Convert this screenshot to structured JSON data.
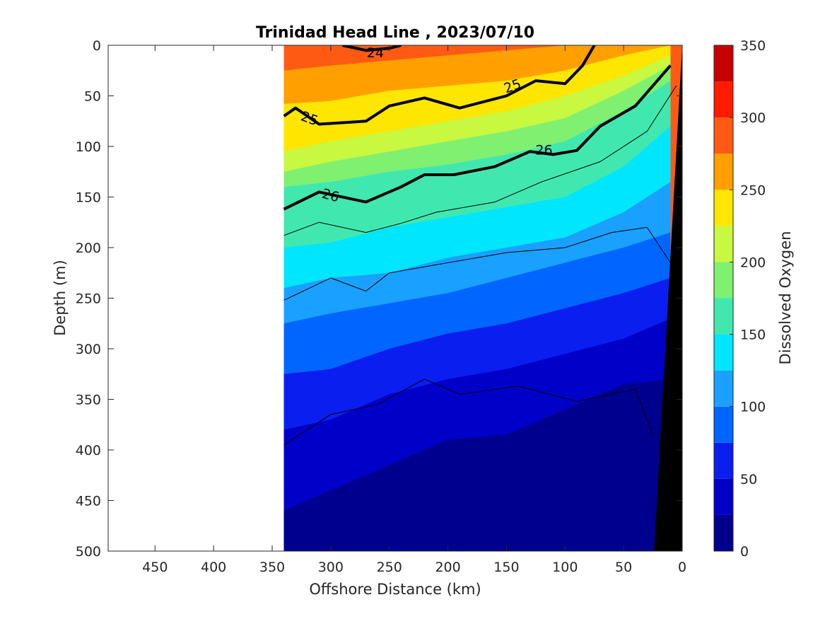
{
  "chart_data": {
    "type": "heatmap",
    "title": "Trinidad Head Line , 2023/07/10",
    "xlabel": "Offshore Distance (km)",
    "ylabel": "Depth (m)",
    "colorbar_label": "Dissolved Oxygen",
    "xlim": [
      490,
      0
    ],
    "ylim": [
      0,
      500
    ],
    "x_ticks": [
      450,
      400,
      350,
      300,
      250,
      200,
      150,
      100,
      50,
      0
    ],
    "y_ticks": [
      0,
      50,
      100,
      150,
      200,
      250,
      300,
      350,
      400,
      450,
      500
    ],
    "colorbar_ticks": [
      0,
      50,
      100,
      150,
      200,
      250,
      300,
      350
    ],
    "color_levels": [
      0,
      25,
      50,
      75,
      100,
      125,
      150,
      175,
      200,
      225,
      250,
      275,
      300,
      325,
      350
    ],
    "colormap": [
      "#00008f",
      "#0000c8",
      "#0a1ef0",
      "#0066ff",
      "#1aa0ff",
      "#00e6ff",
      "#40e8b0",
      "#80f070",
      "#c8f840",
      "#ffe600",
      "#ffa000",
      "#ff5a14",
      "#ff1a00",
      "#c80000"
    ],
    "data_extent_km": [
      340,
      0
    ],
    "contour_labels": [
      "24",
      "25",
      "25",
      "26",
      "26"
    ],
    "oxygen_depth_profiles": [
      {
        "distance": 340,
        "boundaries": [
          25,
          58,
          105,
          125,
          140,
          200,
          240,
          275,
          325,
          380,
          460
        ]
      },
      {
        "distance": 300,
        "boundaries": [
          20,
          55,
          95,
          115,
          135,
          195,
          230,
          265,
          320,
          370,
          440
        ]
      },
      {
        "distance": 250,
        "boundaries": [
          15,
          45,
          85,
          105,
          125,
          180,
          225,
          255,
          300,
          345,
          415
        ]
      },
      {
        "distance": 200,
        "boundaries": [
          10,
          40,
          75,
          95,
          118,
          170,
          210,
          245,
          285,
          330,
          390
        ]
      },
      {
        "distance": 150,
        "boundaries": [
          5,
          35,
          65,
          85,
          108,
          160,
          200,
          230,
          275,
          320,
          385
        ]
      },
      {
        "distance": 100,
        "boundaries": [
          0,
          25,
          50,
          72,
          95,
          150,
          190,
          215,
          260,
          305,
          360
        ]
      },
      {
        "distance": 50,
        "boundaries": [
          0,
          10,
          30,
          45,
          65,
          120,
          165,
          200,
          245,
          290,
          335
        ]
      },
      {
        "distance": 10,
        "boundaries": [
          0,
          0,
          10,
          20,
          35,
          80,
          135,
          185,
          230,
          270,
          330
        ]
      }
    ],
    "density_contours": [
      {
        "level": 24,
        "bold": true,
        "points": [
          [
            290,
            0
          ],
          [
            270,
            5
          ],
          [
            250,
            3
          ],
          [
            240,
            0
          ]
        ]
      },
      {
        "level": 25,
        "bold": true,
        "points": [
          [
            340,
            70
          ],
          [
            330,
            62
          ],
          [
            310,
            78
          ],
          [
            270,
            75
          ],
          [
            250,
            60
          ],
          [
            220,
            52
          ],
          [
            190,
            62
          ],
          [
            150,
            50
          ],
          [
            125,
            35
          ],
          [
            100,
            38
          ],
          [
            85,
            20
          ],
          [
            75,
            0
          ]
        ]
      },
      {
        "level": 26,
        "bold": true,
        "points": [
          [
            340,
            162
          ],
          [
            310,
            145
          ],
          [
            270,
            155
          ],
          [
            240,
            140
          ],
          [
            220,
            128
          ],
          [
            195,
            128
          ],
          [
            160,
            120
          ],
          [
            130,
            105
          ],
          [
            110,
            108
          ],
          [
            90,
            104
          ],
          [
            70,
            80
          ],
          [
            40,
            60
          ],
          [
            10,
            20
          ]
        ]
      },
      {
        "level": null,
        "bold": false,
        "points": [
          [
            340,
            188
          ],
          [
            310,
            175
          ],
          [
            270,
            185
          ],
          [
            240,
            176
          ],
          [
            210,
            165
          ],
          [
            160,
            155
          ],
          [
            120,
            135
          ],
          [
            70,
            115
          ],
          [
            30,
            85
          ],
          [
            5,
            40
          ]
        ]
      },
      {
        "level": null,
        "bold": false,
        "points": [
          [
            340,
            252
          ],
          [
            300,
            230
          ],
          [
            270,
            243
          ],
          [
            250,
            225
          ],
          [
            200,
            215
          ],
          [
            150,
            205
          ],
          [
            100,
            200
          ],
          [
            60,
            185
          ],
          [
            30,
            180
          ],
          [
            10,
            215
          ]
        ]
      },
      {
        "level": null,
        "bold": false,
        "points": [
          [
            340,
            395
          ],
          [
            300,
            365
          ],
          [
            260,
            355
          ],
          [
            220,
            330
          ],
          [
            190,
            345
          ],
          [
            140,
            337
          ],
          [
            90,
            352
          ],
          [
            40,
            340
          ],
          [
            25,
            385
          ]
        ]
      }
    ],
    "bottom_terrain": [
      [
        0,
        0
      ],
      [
        24,
        500
      ],
      [
        0,
        500
      ]
    ]
  }
}
